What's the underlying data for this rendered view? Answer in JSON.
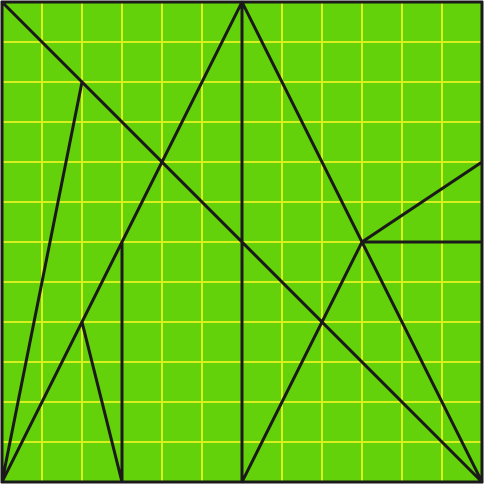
{
  "puzzle": {
    "grid_size": 12,
    "colors": {
      "background": "#64d20a",
      "grid_line": "#d7f01e",
      "outline": "#1a1a1a"
    },
    "segments": [
      {
        "id": "border-top",
        "from": [
          0,
          0
        ],
        "to": [
          12,
          0
        ]
      },
      {
        "id": "border-right",
        "from": [
          12,
          0
        ],
        "to": [
          12,
          12
        ]
      },
      {
        "id": "border-bottom",
        "from": [
          12,
          12
        ],
        "to": [
          0,
          12
        ]
      },
      {
        "id": "border-left",
        "from": [
          0,
          12
        ],
        "to": [
          0,
          0
        ]
      },
      {
        "id": "main-diagonal",
        "from": [
          0,
          0
        ],
        "to": [
          12,
          12
        ]
      },
      {
        "id": "left-spike",
        "from": [
          0,
          12
        ],
        "to": [
          2,
          2
        ]
      },
      {
        "id": "long-diagonal",
        "from": [
          0,
          12
        ],
        "to": [
          6,
          0
        ]
      },
      {
        "id": "center-vertical",
        "from": [
          6,
          0
        ],
        "to": [
          6,
          12
        ]
      },
      {
        "id": "right-slope-a",
        "from": [
          6,
          0
        ],
        "to": [
          12,
          12
        ]
      },
      {
        "id": "small-wedge",
        "from": [
          2,
          8
        ],
        "to": [
          3,
          12
        ]
      },
      {
        "id": "short-vertical",
        "from": [
          3,
          6
        ],
        "to": [
          3,
          12
        ]
      },
      {
        "id": "right-rise",
        "from": [
          9,
          6
        ],
        "to": [
          12,
          4
        ]
      },
      {
        "id": "right-horizontal",
        "from": [
          9,
          6
        ],
        "to": [
          12,
          6
        ]
      },
      {
        "id": "right-slope-b",
        "from": [
          9,
          6
        ],
        "to": [
          6,
          12
        ]
      }
    ]
  }
}
